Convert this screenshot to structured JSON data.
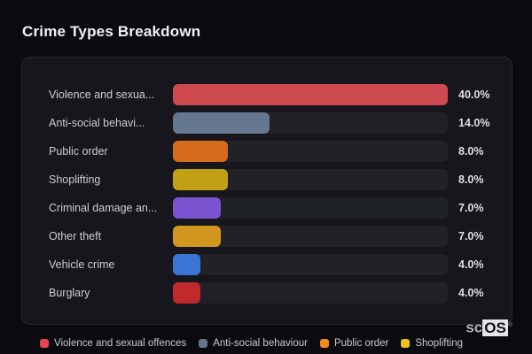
{
  "page": {
    "title": "Crime Types Breakdown"
  },
  "chart_data": {
    "type": "bar",
    "orientation": "horizontal",
    "title": "Crime Types Breakdown",
    "categories": [
      "Violence and sexua...",
      "Anti-social behavi...",
      "Public order",
      "Shoplifting",
      "Criminal damage an...",
      "Other theft",
      "Vehicle crime",
      "Burglary"
    ],
    "values": [
      40.0,
      14.0,
      8.0,
      8.0,
      7.0,
      7.0,
      4.0,
      4.0
    ],
    "value_labels": [
      "40.0%",
      "14.0%",
      "8.0%",
      "8.0%",
      "7.0%",
      "7.0%",
      "4.0%",
      "4.0%"
    ],
    "bar_colors": [
      "#cf4a50",
      "#66788f",
      "#d56c1d",
      "#c2a014",
      "#7b54d2",
      "#d0961e",
      "#3b76d4",
      "#c02a2d"
    ],
    "xlim": [
      0,
      40
    ],
    "grid": false,
    "unit": "%",
    "legend_position": "bottom"
  },
  "legend": {
    "items": [
      {
        "label": "Violence and sexual offences",
        "color": "#e9434f"
      },
      {
        "label": "Anti-social behaviour",
        "color": "#64748b"
      },
      {
        "label": "Public order",
        "color": "#ef8c1b"
      },
      {
        "label": "Shoplifting",
        "color": "#eec11a"
      }
    ]
  },
  "branding": {
    "prefix": "sc",
    "suffix": "OS",
    "registered": "®"
  },
  "colors": {
    "page_bg": "#0b0b0f",
    "panel_bg": "#16161c",
    "panel_border": "#26262d",
    "track": "#212128",
    "title_text": "#f2f2f4",
    "label_text": "#cdced3",
    "value_text": "#dfdfe3",
    "legend_text": "#c9c9cf"
  }
}
